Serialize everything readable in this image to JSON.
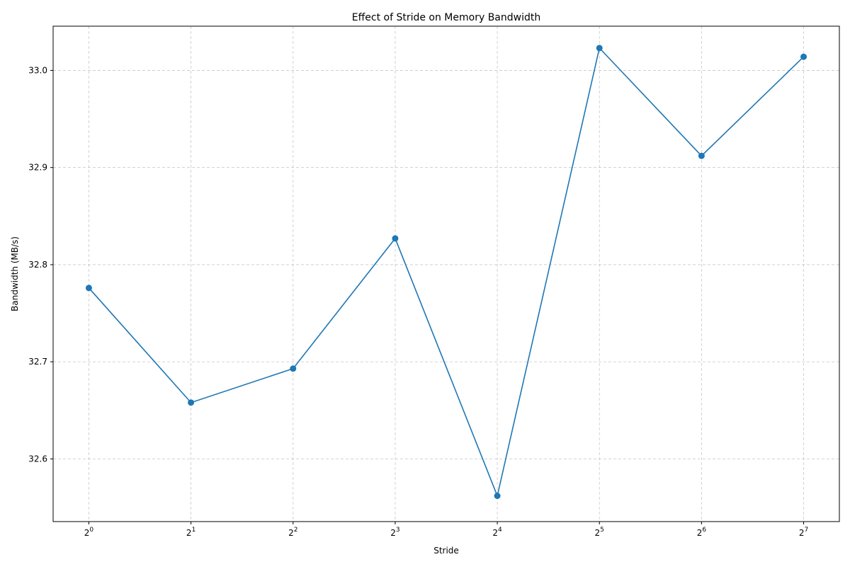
{
  "chart_data": {
    "type": "line",
    "title": "Effect of Stride on Memory Bandwidth",
    "xlabel": "Stride",
    "ylabel": "Bandwidth (MB/s)",
    "x_scale": "log2",
    "x": [
      1,
      2,
      4,
      8,
      16,
      32,
      64,
      128
    ],
    "x_tick_labels": [
      {
        "base": "2",
        "exp": "0"
      },
      {
        "base": "2",
        "exp": "1"
      },
      {
        "base": "2",
        "exp": "2"
      },
      {
        "base": "2",
        "exp": "3"
      },
      {
        "base": "2",
        "exp": "4"
      },
      {
        "base": "2",
        "exp": "5"
      },
      {
        "base": "2",
        "exp": "6"
      },
      {
        "base": "2",
        "exp": "7"
      }
    ],
    "series": [
      {
        "values": [
          32.776,
          32.658,
          32.693,
          32.827,
          32.562,
          33.023,
          32.912,
          33.014
        ],
        "color": "#1f77b4",
        "marker": "circle"
      }
    ],
    "ylim": [
      32.5355,
      33.0455
    ],
    "y_ticks": [
      32.6,
      32.7,
      32.8,
      32.9,
      33.0
    ],
    "y_tick_labels": [
      "32.6",
      "32.7",
      "32.8",
      "32.9",
      "33.0"
    ],
    "grid": true,
    "legend": "none"
  }
}
